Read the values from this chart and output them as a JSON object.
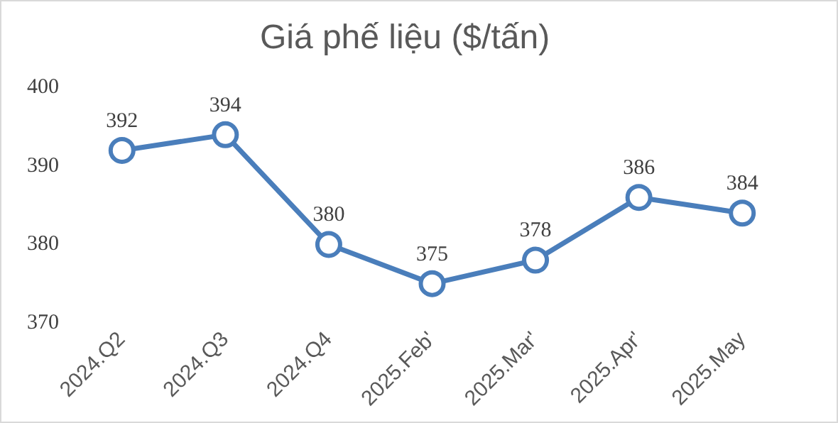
{
  "chart_data": {
    "type": "line",
    "title": "Giá phế liệu ($/tấn)",
    "categories": [
      "2024.Q2",
      "2024.Q3",
      "2024.Q4",
      "2025.Feb'",
      "2025.Mar'",
      "2025.Apr'",
      "2025.May"
    ],
    "series": [
      {
        "color": "#4a7ebb",
        "values": [
          392,
          394,
          380,
          375,
          378,
          386,
          384
        ]
      }
    ],
    "ylim": [
      370,
      400
    ],
    "yticks": [
      370,
      380,
      390,
      400
    ],
    "grid": false,
    "legend": false,
    "marker": "circle",
    "line_style": "solid",
    "data_labels": true
  }
}
